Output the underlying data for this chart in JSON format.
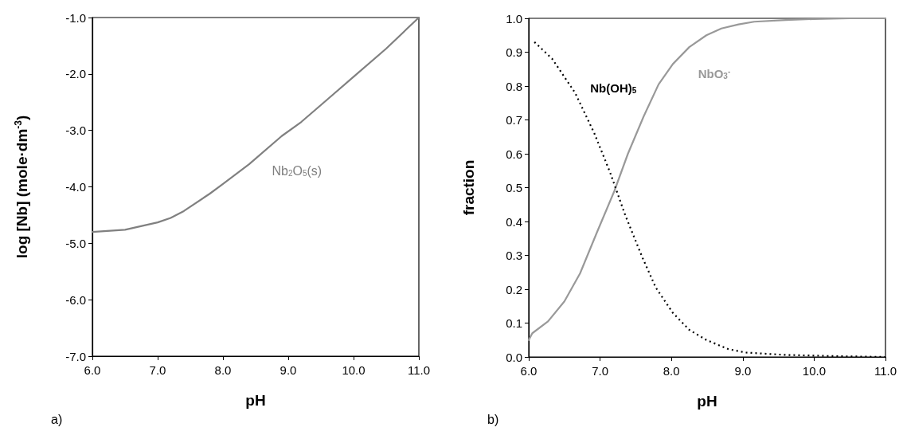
{
  "chart_data": [
    {
      "type": "line",
      "xlabel": "pH",
      "ylabel": "log [Nb] (mole·dm$^{-3}$)",
      "marker": "none",
      "grid": false,
      "xlim": [
        6,
        11
      ],
      "xticks": [
        {
          "value": 6,
          "label": "6.0"
        },
        {
          "value": 7,
          "label": "7.0"
        },
        {
          "value": 8,
          "label": "8.0"
        },
        {
          "value": 9,
          "label": "9.0"
        },
        {
          "value": 10,
          "label": "10.0"
        },
        {
          "value": 11,
          "label": "11.0"
        }
      ],
      "ylim": [
        -7,
        -1
      ],
      "yticks": [
        {
          "value": -7,
          "label": "-7.0"
        },
        {
          "value": -6,
          "label": "-6.0"
        },
        {
          "value": -5,
          "label": "-5.0"
        },
        {
          "value": -4,
          "label": "-4.0"
        },
        {
          "value": -3,
          "label": "-3.0"
        },
        {
          "value": -2,
          "label": "-2.0"
        },
        {
          "value": -1,
          "label": "-1.0"
        }
      ],
      "series": [
        {
          "name": "Nb$_{2}$O$_{5}$(s)",
          "color": "#808080",
          "line_style": "solid",
          "x": [
            6.0,
            6.5,
            7.0,
            7.2,
            7.4,
            7.8,
            8.0,
            8.4,
            8.9,
            9.2,
            9.6,
            10.0,
            10.5,
            11.0
          ],
          "values": [
            -4.8,
            -4.76,
            -4.63,
            -4.55,
            -4.43,
            -4.12,
            -3.95,
            -3.6,
            -3.1,
            -2.85,
            -2.45,
            -2.05,
            -1.55,
            -1.0
          ]
        }
      ],
      "annotations": [
        "a)"
      ]
    },
    {
      "type": "line",
      "xlabel": "pH",
      "ylabel": "fraction",
      "marker": "none",
      "grid": false,
      "xlim": [
        6,
        11
      ],
      "xticks": [
        {
          "value": 6,
          "label": "6.0"
        },
        {
          "value": 7,
          "label": "7.0"
        },
        {
          "value": 8,
          "label": "8.0"
        },
        {
          "value": 9,
          "label": "9.0"
        },
        {
          "value": 10,
          "label": "10.0"
        },
        {
          "value": 11,
          "label": "11.0"
        }
      ],
      "ylim": [
        0,
        1
      ],
      "yticks": [
        {
          "value": 0,
          "label": "0.0"
        },
        0.1,
        0.2,
        0.3,
        0.4,
        0.5,
        0.6,
        0.7,
        0.8,
        0.9,
        {
          "value": 1,
          "label": "1.0"
        }
      ],
      "series": [
        {
          "name": "NbO$_{3}$$^{-}$",
          "color": "#999999",
          "line_style": "solid",
          "x": [
            6.0,
            6.05,
            6.27,
            6.5,
            6.72,
            6.96,
            7.2,
            7.39,
            7.61,
            7.82,
            8.02,
            8.25,
            8.49,
            8.7,
            8.94,
            9.16,
            9.6,
            10.0,
            10.5,
            11.0
          ],
          "values": [
            0.05,
            0.07,
            0.105,
            0.164,
            0.247,
            0.37,
            0.49,
            0.6,
            0.71,
            0.805,
            0.865,
            0.915,
            0.95,
            0.97,
            0.982,
            0.99,
            0.995,
            0.998,
            1.0,
            1.0
          ]
        },
        {
          "name": "Nb(OH)$_{5}$",
          "color": "#000000",
          "line_style": "dotted",
          "x": [
            6.08,
            6.33,
            6.65,
            6.92,
            7.14,
            7.35,
            7.59,
            7.78,
            8.02,
            8.25,
            8.49,
            8.8,
            9.04,
            9.59,
            10.37,
            11.0
          ],
          "values": [
            0.93,
            0.88,
            0.78,
            0.66,
            0.545,
            0.42,
            0.295,
            0.205,
            0.13,
            0.08,
            0.05,
            0.023,
            0.013,
            0.006,
            0.002,
            0.0
          ]
        }
      ],
      "annotations": [
        "b)"
      ]
    }
  ]
}
